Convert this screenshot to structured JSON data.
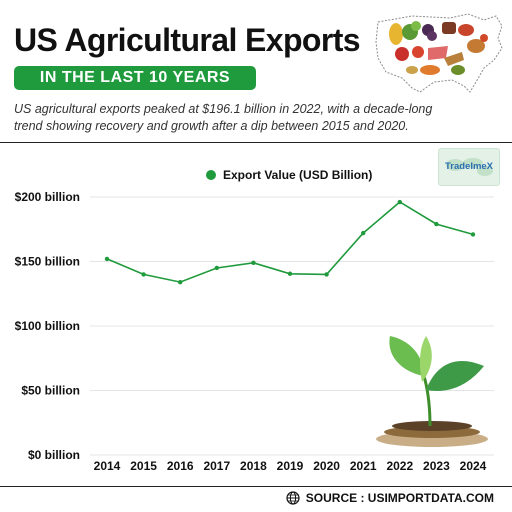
{
  "header": {
    "title": "US Agricultural Exports",
    "banner": "IN THE LAST 10 YEARS",
    "subtitle": "US agricultural exports peaked at $196.1 billion in 2022, with a decade-long trend showing recovery and growth after a dip between 2015 and 2020."
  },
  "badge": {
    "text": "TradeImeX"
  },
  "source": {
    "text": "SOURCE : USIMPORTDATA.COM",
    "icon": "globe-icon"
  },
  "colors": {
    "accent": "#1f9a3c",
    "line": "#1f9a3c"
  },
  "chart_data": {
    "type": "line",
    "title": "",
    "xlabel": "",
    "ylabel": "",
    "x": [
      "2014",
      "2015",
      "2016",
      "2017",
      "2018",
      "2019",
      "2020",
      "2021",
      "2022",
      "2023",
      "2024"
    ],
    "series": [
      {
        "name": "Export Value (USD Billion)",
        "values": [
          152,
          140,
          134,
          145,
          149,
          140.5,
          140,
          172,
          196.1,
          179,
          171
        ]
      }
    ],
    "ylim": [
      0,
      200
    ],
    "yticks": [
      0,
      50,
      100,
      150,
      200
    ],
    "ytick_labels": [
      "$0 billion",
      "$50 billion",
      "$100 billion",
      "$150 billion",
      "$200 billion"
    ],
    "grid": true,
    "legend": "top-center"
  }
}
